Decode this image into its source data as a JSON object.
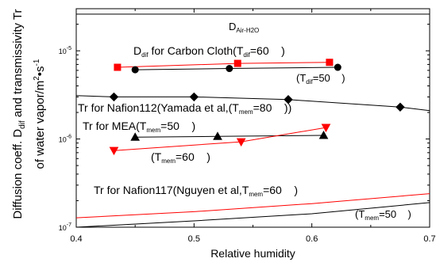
{
  "chart_data": {
    "type": "scatter",
    "xlabel": "Relative humidity",
    "ylabel": [
      "Diffusion coeff. D",
      "dif",
      " and transmissivity Tr",
      "of water vapor/m",
      "2",
      "•s",
      "-1"
    ],
    "xlim": [
      0.4,
      0.7
    ],
    "ylim": [
      1e-07,
      3e-05
    ],
    "yscale": "log",
    "x_ticks": [
      "0.4",
      "0.5",
      "0.6",
      "0.7"
    ],
    "y_ticks": [
      {
        "value": 1e-07,
        "base": "10",
        "exp": "-7"
      },
      {
        "value": 1e-06,
        "base": "10",
        "exp": "-6"
      },
      {
        "value": 1e-05,
        "base": "10",
        "exp": "-5"
      }
    ],
    "grid": false,
    "colors": {
      "black": "#000000",
      "red": "#ff0000"
    },
    "series": [
      {
        "id": "d-air-h2o",
        "color": "#000000",
        "marker": "none",
        "x": [
          0.4,
          0.7
        ],
        "y": [
          2.6e-05,
          2.6e-05
        ]
      },
      {
        "id": "d-dif-carbon-cloth-60",
        "color": "#ff0000",
        "marker": "square",
        "x": [
          0.435,
          0.537,
          0.615
        ],
        "y": [
          6.5e-06,
          7.2e-06,
          7.4e-06
        ]
      },
      {
        "id": "d-dif-carbon-cloth-50",
        "color": "#000000",
        "marker": "circle",
        "x": [
          0.45,
          0.53,
          0.622
        ],
        "y": [
          6.1e-06,
          6.3e-06,
          6.5e-06
        ]
      },
      {
        "id": "tr-nafion112-yamada",
        "color": "#000000",
        "marker": "diamond",
        "x": [
          0.4,
          0.432,
          0.5,
          0.58,
          0.675,
          0.7
        ],
        "markers_at": [
          0.432,
          0.5,
          0.58,
          0.675
        ],
        "y": [
          3.1e-06,
          3e-06,
          3e-06,
          2.8e-06,
          2.3e-06,
          2.1e-06
        ]
      },
      {
        "id": "tr-mea-50",
        "color": "#000000",
        "marker": "triangle",
        "x": [
          0.45,
          0.52,
          0.61
        ],
        "y": [
          1.05e-06,
          1.07e-06,
          1.1e-06
        ]
      },
      {
        "id": "tr-mea-60",
        "color": "#ff0000",
        "marker": "triangle-down",
        "x": [
          0.432,
          0.54,
          0.612
        ],
        "y": [
          7.4e-07,
          9.3e-07,
          1.35e-06
        ]
      },
      {
        "id": "tr-nafion117-60",
        "color": "#ff0000",
        "marker": "none",
        "x": [
          0.4,
          0.5,
          0.6,
          0.7
        ],
        "y": [
          1.28e-07,
          1.5e-07,
          1.85e-07,
          2.4e-07
        ]
      },
      {
        "id": "tr-nafion117-50",
        "color": "#000000",
        "marker": "none",
        "x": [
          0.4,
          0.5,
          0.6,
          0.7
        ],
        "y": [
          1e-07,
          1.18e-07,
          1.42e-07,
          1.9e-07
        ]
      }
    ],
    "annotations": [
      {
        "id": "air",
        "parts": [
          [
            "D",
            ""
          ],
          [
            "Air-H2O",
            "sub"
          ]
        ]
      },
      {
        "id": "carbon",
        "parts": [
          [
            "D",
            ""
          ],
          [
            "dif",
            "sub"
          ],
          [
            " for Carbon Cloth(T",
            ""
          ],
          [
            "dif",
            "sub"
          ],
          [
            "=60    )",
            ""
          ]
        ]
      },
      {
        "id": "tdif50",
        "parts": [
          [
            "(T",
            ""
          ],
          [
            "dif",
            "sub"
          ],
          [
            "=50    )",
            ""
          ]
        ]
      },
      {
        "id": "nafion112",
        "parts": [
          [
            "Tr for Nafion112(Yamada et al,(T",
            ""
          ],
          [
            "mem",
            "sub"
          ],
          [
            "=80    ))",
            ""
          ]
        ]
      },
      {
        "id": "mea50",
        "parts": [
          [
            "Tr for MEA(T",
            ""
          ],
          [
            "mem",
            "sub"
          ],
          [
            "=50    )",
            ""
          ]
        ]
      },
      {
        "id": "mea60",
        "parts": [
          [
            "(T",
            ""
          ],
          [
            "mem",
            "sub"
          ],
          [
            "=60    )",
            ""
          ]
        ]
      },
      {
        "id": "nafion117",
        "parts": [
          [
            "Tr for Nafion117(Nguyen et al,T",
            ""
          ],
          [
            "mem",
            "sub"
          ],
          [
            "=60    )",
            ""
          ]
        ]
      },
      {
        "id": "tmem50",
        "parts": [
          [
            "(T",
            ""
          ],
          [
            "mem",
            "sub"
          ],
          [
            "=50    )",
            ""
          ]
        ]
      }
    ]
  }
}
